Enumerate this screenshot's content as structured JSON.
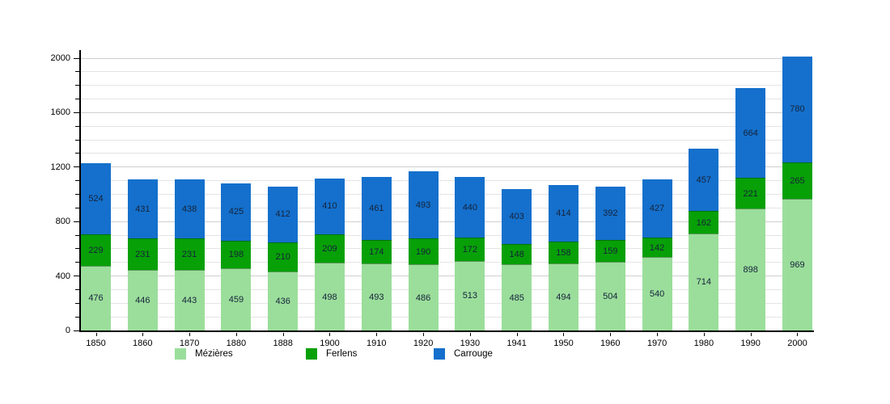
{
  "chart_data": {
    "type": "bar",
    "stacked": true,
    "title": "",
    "xlabel": "",
    "ylabel": "",
    "ylim": [
      0,
      2000
    ],
    "yticks": [
      0,
      400,
      800,
      1200,
      1600,
      2000
    ],
    "minor_grid_step": 100,
    "grid": true,
    "legend_position": "bottom",
    "categories": [
      "1850",
      "1860",
      "1870",
      "1880",
      "1888",
      "1900",
      "1910",
      "1920",
      "1930",
      "1941",
      "1950",
      "1960",
      "1970",
      "1980",
      "1990",
      "2000"
    ],
    "series": [
      {
        "name": "Mézières",
        "color": "#9bde9b",
        "values": [
          476,
          446,
          443,
          459,
          436,
          498,
          493,
          486,
          513,
          485,
          494,
          504,
          540,
          714,
          898,
          969
        ]
      },
      {
        "name": "Ferlens",
        "color": "#07a007",
        "values": [
          229,
          231,
          231,
          198,
          210,
          209,
          174,
          190,
          172,
          148,
          158,
          159,
          142,
          162,
          221,
          265
        ]
      },
      {
        "name": "Carrouge",
        "color": "#1470cc",
        "values": [
          524,
          431,
          438,
          425,
          412,
          410,
          461,
          493,
          440,
          403,
          414,
          392,
          427,
          457,
          664,
          780
        ]
      }
    ]
  },
  "legend": {
    "items": [
      {
        "label": "Mézières",
        "color": "#9bde9b"
      },
      {
        "label": "Ferlens",
        "color": "#07a007"
      },
      {
        "label": "Carrouge",
        "color": "#1470cc"
      }
    ],
    "item_x_positions": [
      216,
      378,
      536
    ],
    "y_position": 431
  },
  "axes": {
    "y_tick_labels": [
      "0",
      "400",
      "800",
      "1200",
      "1600",
      "2000"
    ]
  }
}
